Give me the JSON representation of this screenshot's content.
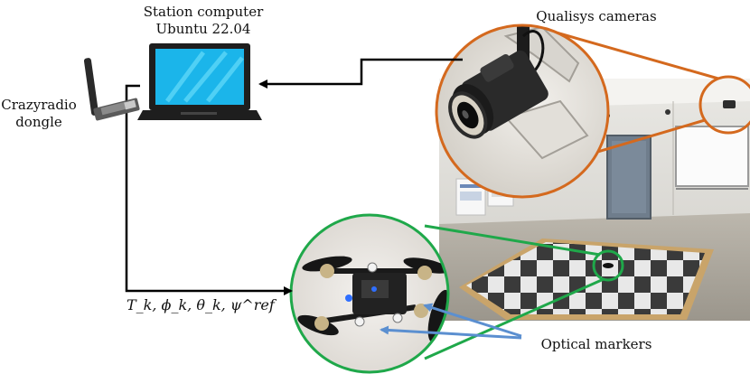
{
  "station": {
    "line1": "Station computer",
    "line2": "Ubuntu 22.04"
  },
  "dongle": {
    "line1": "Crazyradio",
    "line2": "dongle"
  },
  "cameras_label": "Qualisys cameras",
  "markers_label": "Optical markers",
  "command_label": "T_k, ϕ_k, θ_k, ψ^ref",
  "colors": {
    "camera_callout": "#d4691e",
    "drone_callout": "#1fa84a",
    "marker_arrows": "#5b8fd0",
    "signal_lines": "#000000"
  }
}
